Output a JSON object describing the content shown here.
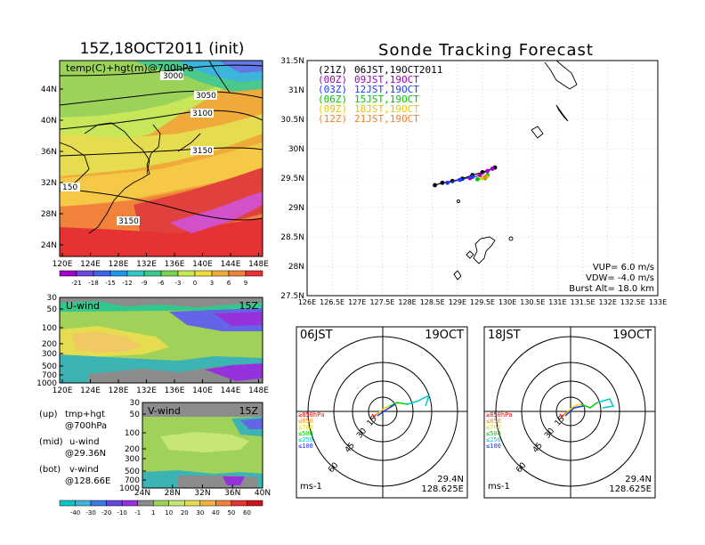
{
  "left": {
    "title": "15Z,18OCT2011 (init)",
    "map_label": "temp(C)+hgt(m)@700hPa",
    "map_lat_ticks": [
      "44N",
      "40N",
      "36N",
      "32N",
      "28N",
      "24N"
    ],
    "map_lon_ticks": [
      "120E",
      "124E",
      "128E",
      "132E",
      "136E",
      "140E",
      "144E",
      "148E"
    ],
    "contour_labels": [
      "3000",
      "3050",
      "3100",
      "3150",
      "150",
      "3150"
    ],
    "temp_colorbar_ticks": [
      "-21",
      "-18",
      "-15",
      "-12",
      "-9",
      "-6",
      "-3",
      "0",
      "3",
      "6",
      "9"
    ],
    "uwind_label": "U-wind",
    "uwind_time": "15Z",
    "pressure_ticks": [
      "30",
      "50",
      "100",
      "200",
      "300",
      "500",
      "700",
      "1000"
    ],
    "uwind_lon_ticks": [
      "120E",
      "124E",
      "128E",
      "132E",
      "136E",
      "140E",
      "144E",
      "148E"
    ],
    "vwind_label": "V-wind",
    "vwind_time": "15Z",
    "vwind_lat_ticks": [
      "24N",
      "28N",
      "32N",
      "36N",
      "40N"
    ],
    "wind_colorbar_ticks": [
      "-40",
      "-30",
      "-20",
      "-10",
      "-1",
      "1",
      "10",
      "20",
      "30",
      "40",
      "50",
      "60"
    ],
    "legend_lines": [
      {
        "a": "(up)",
        "b": "tmp+hgt",
        "c": "@700hPa"
      },
      {
        "a": "(mid)",
        "b": "u-wind",
        "c": "@29.36N"
      },
      {
        "a": "(bot)",
        "b": "v-wind",
        "c": "@128.66E"
      }
    ]
  },
  "right": {
    "title": "Sonde Tracking Forecast",
    "lat_ticks": [
      "31.5N",
      "31N",
      "30.5N",
      "30N",
      "29.5N",
      "29N",
      "28.5N",
      "28N",
      "27.5N"
    ],
    "lon_ticks": [
      "126E",
      "126.5E",
      "127E",
      "127.5E",
      "128E",
      "128.5E",
      "129E",
      "129.5E",
      "130E",
      "130.5E",
      "131E",
      "131.5E",
      "132E",
      "132.5E",
      "133E"
    ],
    "times": [
      {
        "z": "(21Z)",
        "jst": "06JST,19OCT2011",
        "color": "#000000"
      },
      {
        "z": "(00Z)",
        "jst": "09JST,19OCT",
        "color": "#a000c8"
      },
      {
        "z": "(03Z)",
        "jst": "12JST,19OCT",
        "color": "#1e3cff"
      },
      {
        "z": "(06Z)",
        "jst": "15JST,19OCT",
        "color": "#00c800"
      },
      {
        "z": "(09Z)",
        "jst": "18JST,19OCT",
        "color": "#e6c800"
      },
      {
        "z": "(12Z)",
        "jst": "21JST,19OCT",
        "color": "#f08228"
      }
    ],
    "params": [
      "VUP= 6.0 m/s",
      "VDW= -4.0 m/s",
      "Burst Alt= 18.0 km"
    ]
  },
  "polar": [
    {
      "time": "06JST",
      "date": "19OCT",
      "lat": "29.4N",
      "lon": "128.625E",
      "unit": "ms-1",
      "rings": [
        "15",
        "30",
        "45",
        "60"
      ]
    },
    {
      "time": "18JST",
      "date": "19OCT",
      "lat": "29.4N",
      "lon": "128.625E",
      "unit": "ms-1",
      "rings": [
        "15",
        "30",
        "45",
        "60"
      ]
    }
  ],
  "polar_legend": [
    {
      "label": "≥850hPa",
      "color": "#ff0000"
    },
    {
      "label": "≤850",
      "color": "#ff9600"
    },
    {
      "label": "≤700",
      "color": "#e6dc00"
    },
    {
      "label": "≤500",
      "color": "#00d200"
    },
    {
      "label": "≤250",
      "color": "#00c8c8"
    },
    {
      "label": "≤100",
      "color": "#1e32ff"
    }
  ],
  "chart_data": {
    "type": "scatter",
    "title": "Sonde Tracking Forecast",
    "xlim": [
      126,
      133
    ],
    "ylim": [
      27.5,
      31.5
    ],
    "grid": true,
    "series": [
      {
        "name": "(21Z) 06JST,19OCT2011",
        "color": "#000000",
        "points": [
          [
            128.55,
            29.38
          ],
          [
            128.7,
            29.42
          ],
          [
            128.9,
            29.45
          ],
          [
            129.1,
            29.49
          ],
          [
            129.3,
            29.55
          ],
          [
            129.5,
            29.6
          ],
          [
            129.75,
            29.68
          ]
        ]
      },
      {
        "name": "(00Z) 09JST,19OCT",
        "color": "#a000c8",
        "points": [
          [
            129.25,
            29.5
          ],
          [
            129.45,
            29.55
          ],
          [
            129.6,
            29.62
          ],
          [
            129.7,
            29.66
          ]
        ]
      },
      {
        "name": "(03Z) 12JST,19OCT",
        "color": "#1e3cff",
        "points": [
          [
            128.8,
            29.42
          ],
          [
            129.05,
            29.47
          ],
          [
            129.3,
            29.52
          ]
        ]
      },
      {
        "name": "(06Z) 15JST,19OCT",
        "color": "#00c800",
        "points": [
          [
            129.4,
            29.48
          ],
          [
            129.55,
            29.5
          ],
          [
            129.6,
            29.55
          ]
        ]
      },
      {
        "name": "(09Z) 18JST,19OCT",
        "color": "#e6c800",
        "points": [
          [
            129.5,
            29.5
          ],
          [
            129.58,
            29.52
          ]
        ]
      },
      {
        "name": "(12Z) 21JST,19OCT",
        "color": "#f08228",
        "points": [
          [
            129.55,
            29.52
          ]
        ]
      }
    ]
  }
}
